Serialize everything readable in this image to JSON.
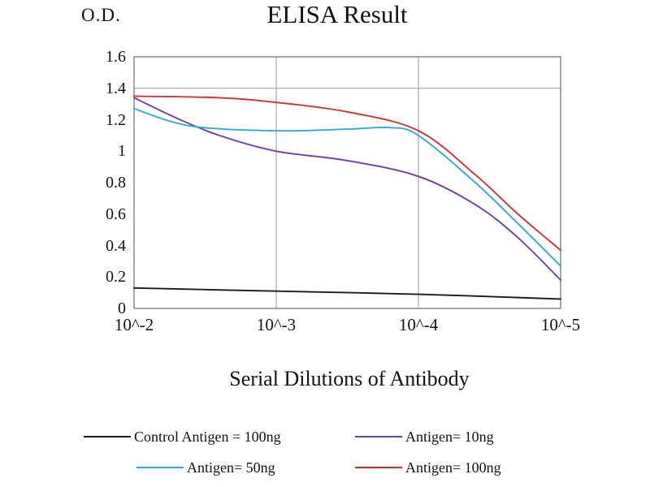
{
  "chart_data": {
    "type": "line",
    "title": "ELISA Result",
    "ylabel": "O.D.",
    "xlabel": "Serial Dilutions of Antibody",
    "x_tick_labels": [
      "10^-2",
      "10^-3",
      "10^-4",
      "10^-5"
    ],
    "y_tick_labels": [
      "0",
      "0.2",
      "0.4",
      "0.6",
      "0.8",
      "1",
      "1.2",
      "1.4",
      "1.6"
    ],
    "ylim": [
      0,
      1.6
    ],
    "grid": {
      "vertical_at_ticks": true,
      "horizontal_at": [
        1.4
      ],
      "color": "#999999",
      "frame_color": "#808080"
    },
    "legend_position": "bottom",
    "series": [
      {
        "name": "Control Antigen = 100ng",
        "color": "#1a1a1a",
        "values_at_ticks": [
          0.13,
          0.11,
          0.09,
          0.06
        ],
        "points": [
          [
            0,
            0.13
          ],
          [
            1,
            0.11
          ],
          [
            2,
            0.09
          ],
          [
            3,
            0.06
          ]
        ]
      },
      {
        "name": "Antigen= 10ng",
        "color": "#7040a0",
        "values_at_ticks": [
          1.34,
          1.0,
          0.84,
          0.18
        ],
        "points": [
          [
            0,
            1.34
          ],
          [
            0.3,
            1.21
          ],
          [
            0.6,
            1.1
          ],
          [
            1,
            1.0
          ],
          [
            1.5,
            0.94
          ],
          [
            2,
            0.84
          ],
          [
            2.4,
            0.66
          ],
          [
            2.7,
            0.45
          ],
          [
            3,
            0.18
          ]
        ]
      },
      {
        "name": "Antigen= 50ng",
        "color": "#33aacc",
        "values_at_ticks": [
          1.27,
          1.13,
          1.1,
          0.27
        ],
        "points": [
          [
            0,
            1.27
          ],
          [
            0.4,
            1.16
          ],
          [
            1,
            1.13
          ],
          [
            1.5,
            1.14
          ],
          [
            1.8,
            1.15
          ],
          [
            2,
            1.1
          ],
          [
            2.4,
            0.8
          ],
          [
            2.7,
            0.54
          ],
          [
            3,
            0.27
          ]
        ]
      },
      {
        "name": "Antigen= 100ng",
        "color": "#cc3333",
        "values_at_ticks": [
          1.35,
          1.31,
          1.13,
          0.37
        ],
        "points": [
          [
            0,
            1.35
          ],
          [
            0.6,
            1.34
          ],
          [
            1,
            1.31
          ],
          [
            1.5,
            1.25
          ],
          [
            2,
            1.13
          ],
          [
            2.4,
            0.85
          ],
          [
            2.7,
            0.6
          ],
          [
            3,
            0.37
          ]
        ]
      }
    ]
  }
}
